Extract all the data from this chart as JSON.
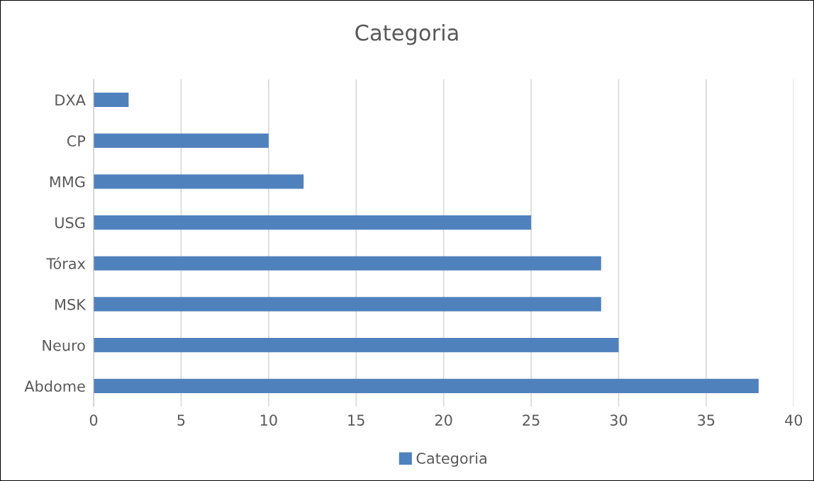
{
  "chart_data": {
    "type": "bar",
    "orientation": "horizontal",
    "title": "Categoria",
    "categories": [
      "DXA",
      "CP",
      "MMG",
      "USG",
      "Tórax",
      "MSK",
      "Neuro",
      "Abdome"
    ],
    "series": [
      {
        "name": "Categoria",
        "color": "#4f81bd",
        "values": [
          2,
          10,
          12,
          25,
          29,
          29,
          30,
          38
        ]
      }
    ],
    "xlim": [
      0,
      40
    ],
    "xticks": [
      0,
      5,
      10,
      15,
      20,
      25,
      30,
      35,
      40
    ],
    "grid": "x",
    "legend": "bottom"
  }
}
